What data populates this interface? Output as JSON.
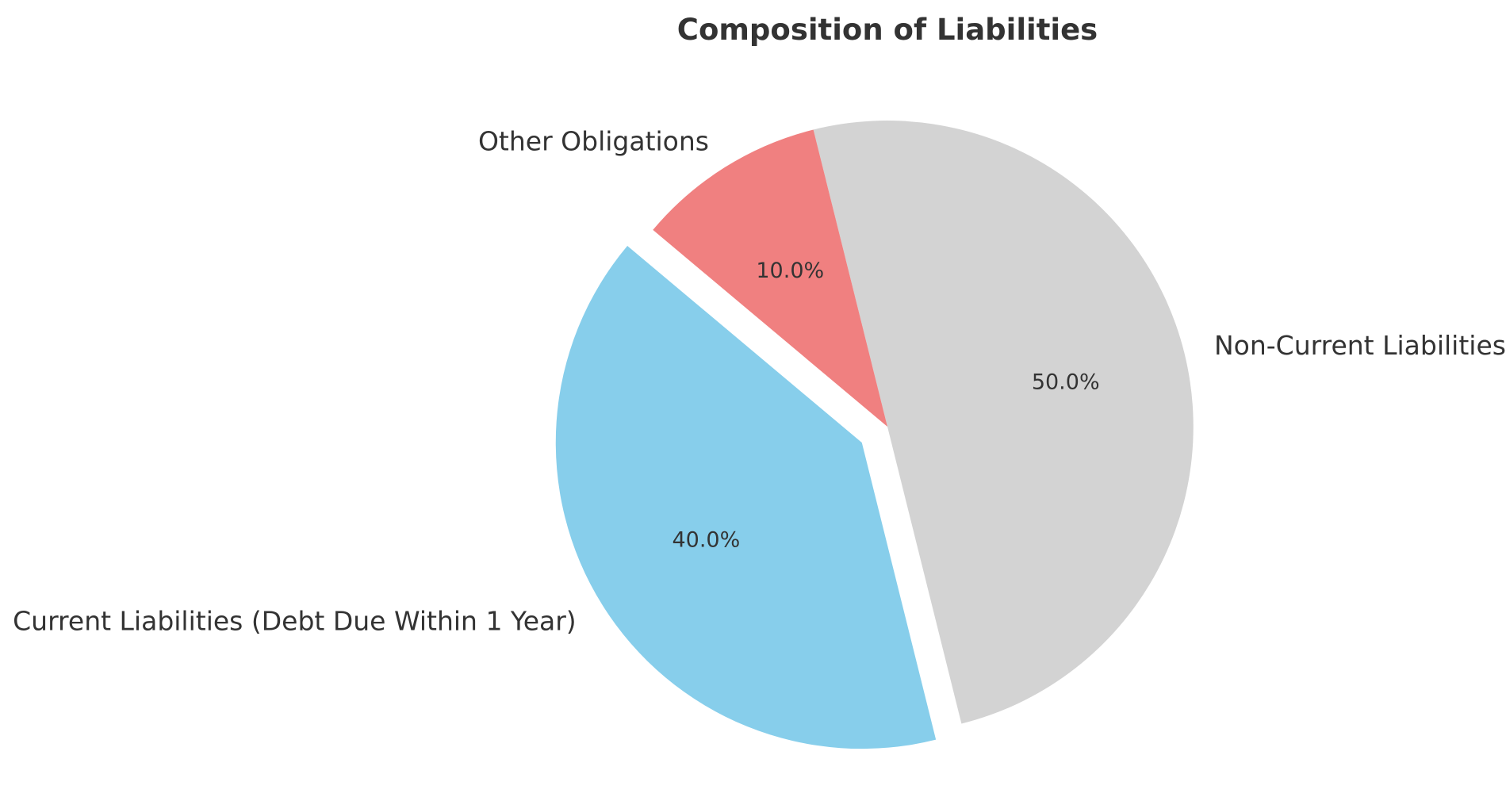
{
  "chart_data": {
    "type": "pie",
    "title": "Composition of Liabilities",
    "start_angle_deg": 140,
    "direction": "counterclockwise",
    "slices": [
      {
        "label": "Current Liabilities (Debt Due Within 1 Year)",
        "value": 40,
        "pct_label": "40.0%",
        "color": "#87CEEB",
        "exploded": true
      },
      {
        "label": "Non-Current Liabilities",
        "value": 50,
        "pct_label": "50.0%",
        "color": "#D3D3D3",
        "exploded": false
      },
      {
        "label": "Other Obligations",
        "value": 10,
        "pct_label": "10.0%",
        "color": "#F08080",
        "exploded": false
      }
    ]
  }
}
